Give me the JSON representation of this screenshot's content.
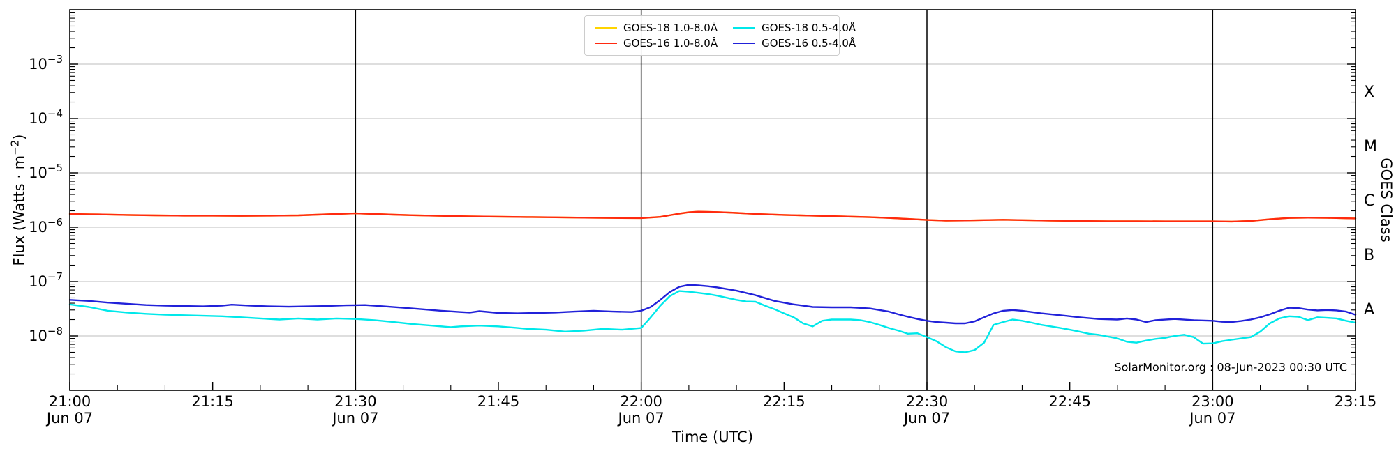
{
  "figure": {
    "watermark": "SolarMonitor.org : 08-Jun-2023 00:30 UTC"
  },
  "chart_data": {
    "type": "line",
    "title": "",
    "xlabel": "Time (UTC)",
    "ylabel_parts": {
      "pre": "Flux (Watts · m",
      "sup": "−2",
      "post": ")"
    },
    "ylabel_right": "GOES Class",
    "grid": true,
    "grid_color": "#c9c9c9",
    "axis_color": "#000000",
    "x_domain_minutes": [
      0,
      135
    ],
    "x_minor_step_minutes": 5,
    "x_ticks": [
      {
        "minutes": 0,
        "time": "21:00",
        "date": "Jun 07"
      },
      {
        "minutes": 15,
        "time": "21:15",
        "date": ""
      },
      {
        "minutes": 30,
        "time": "21:30",
        "date": "Jun 07"
      },
      {
        "minutes": 45,
        "time": "21:45",
        "date": ""
      },
      {
        "minutes": 60,
        "time": "22:00",
        "date": "Jun 07"
      },
      {
        "minutes": 75,
        "time": "22:15",
        "date": ""
      },
      {
        "minutes": 90,
        "time": "22:30",
        "date": "Jun 07"
      },
      {
        "minutes": 105,
        "time": "22:45",
        "date": ""
      },
      {
        "minutes": 120,
        "time": "23:00",
        "date": "Jun 07"
      },
      {
        "minutes": 135,
        "time": "23:15",
        "date": ""
      }
    ],
    "event_lines_minutes": [
      30,
      60,
      90,
      120
    ],
    "y_log_domain": [
      -9,
      -2
    ],
    "y_major_exponents": [
      -3,
      -4,
      -5,
      -6,
      -7,
      -8
    ],
    "y_tick_base": "10",
    "goes_classes": [
      {
        "label": "X",
        "log_center": -3.5
      },
      {
        "label": "M",
        "log_center": -4.5
      },
      {
        "label": "C",
        "log_center": -5.5
      },
      {
        "label": "B",
        "log_center": -6.5
      },
      {
        "label": "A",
        "log_center": -7.5
      }
    ],
    "legend": {
      "position": "top-center",
      "columns": 2
    },
    "series": [
      {
        "id": "goes18-long",
        "name": "GOES-18 1.0-8.0Å",
        "color": "#ffd400",
        "scale": 1e-06,
        "t": [
          0,
          3,
          6,
          9,
          12,
          15,
          18,
          21,
          24,
          26,
          28,
          30,
          32,
          34,
          36,
          39,
          42,
          45,
          48,
          51,
          54,
          57,
          60,
          62,
          64,
          65,
          66,
          68,
          70,
          72,
          75,
          78,
          81,
          84,
          86,
          88,
          90,
          92,
          94,
          96,
          98,
          100,
          103,
          106,
          109,
          112,
          115,
          118,
          120,
          122,
          124,
          126,
          128,
          130,
          132,
          134,
          135
        ],
        "values": [
          1.75,
          1.72,
          1.68,
          1.65,
          1.63,
          1.63,
          1.62,
          1.63,
          1.65,
          1.7,
          1.75,
          1.8,
          1.75,
          1.7,
          1.66,
          1.62,
          1.58,
          1.56,
          1.54,
          1.52,
          1.5,
          1.48,
          1.47,
          1.55,
          1.78,
          1.88,
          1.93,
          1.9,
          1.83,
          1.76,
          1.68,
          1.63,
          1.58,
          1.53,
          1.48,
          1.42,
          1.36,
          1.32,
          1.33,
          1.35,
          1.37,
          1.35,
          1.32,
          1.3,
          1.29,
          1.29,
          1.28,
          1.28,
          1.28,
          1.27,
          1.3,
          1.4,
          1.48,
          1.5,
          1.49,
          1.46,
          1.45
        ]
      },
      {
        "id": "goes16-long",
        "name": "GOES-16 1.0-8.0Å",
        "color": "#ff2a10",
        "scale": 1e-06,
        "t": [
          0,
          3,
          6,
          9,
          12,
          15,
          18,
          21,
          24,
          26,
          28,
          30,
          32,
          34,
          36,
          39,
          42,
          45,
          48,
          51,
          54,
          57,
          60,
          62,
          64,
          65,
          66,
          68,
          70,
          72,
          75,
          78,
          81,
          84,
          86,
          88,
          90,
          92,
          94,
          96,
          98,
          100,
          103,
          106,
          109,
          112,
          115,
          118,
          120,
          122,
          124,
          126,
          128,
          130,
          132,
          134,
          135
        ],
        "values": [
          1.75,
          1.72,
          1.68,
          1.65,
          1.63,
          1.63,
          1.62,
          1.63,
          1.65,
          1.7,
          1.75,
          1.8,
          1.75,
          1.7,
          1.66,
          1.62,
          1.58,
          1.56,
          1.54,
          1.52,
          1.5,
          1.48,
          1.47,
          1.55,
          1.78,
          1.88,
          1.93,
          1.9,
          1.83,
          1.76,
          1.68,
          1.63,
          1.58,
          1.53,
          1.48,
          1.42,
          1.36,
          1.32,
          1.33,
          1.35,
          1.37,
          1.35,
          1.32,
          1.3,
          1.29,
          1.29,
          1.28,
          1.28,
          1.28,
          1.27,
          1.3,
          1.4,
          1.48,
          1.5,
          1.49,
          1.46,
          1.45
        ]
      },
      {
        "id": "goes18-short",
        "name": "GOES-18 0.5-4.0Å",
        "color": "#00e8ea",
        "scale": 1e-08,
        "t": [
          0,
          2,
          4,
          6,
          8,
          10,
          12,
          14,
          16,
          18,
          20,
          22,
          24,
          26,
          28,
          30,
          32,
          34,
          36,
          38,
          40,
          41,
          43,
          45,
          47,
          48,
          50,
          52,
          54,
          56,
          58,
          60,
          61,
          62,
          63,
          64,
          65,
          66,
          67,
          68,
          70,
          71,
          72,
          73,
          74,
          75,
          76,
          77,
          78,
          79,
          80,
          82,
          83,
          84,
          85,
          86,
          87,
          88,
          89,
          90,
          91,
          92,
          93,
          94,
          95,
          96,
          97,
          98,
          99,
          100,
          101,
          102,
          103,
          104,
          105,
          106,
          107,
          108,
          110,
          111,
          112,
          113,
          114,
          115,
          116,
          117,
          118,
          119,
          120,
          121,
          122,
          123,
          124,
          125,
          126,
          127,
          128,
          129,
          130,
          131,
          132,
          133,
          134,
          135
        ],
        "values": [
          3.8,
          3.4,
          2.9,
          2.7,
          2.55,
          2.45,
          2.4,
          2.35,
          2.3,
          2.2,
          2.1,
          2.0,
          2.1,
          2.0,
          2.1,
          2.05,
          1.95,
          1.8,
          1.65,
          1.55,
          1.45,
          1.5,
          1.55,
          1.5,
          1.4,
          1.35,
          1.3,
          1.2,
          1.25,
          1.35,
          1.3,
          1.4,
          2.2,
          3.6,
          5.4,
          6.7,
          6.5,
          6.2,
          5.9,
          5.5,
          4.6,
          4.3,
          4.25,
          3.6,
          3.1,
          2.6,
          2.2,
          1.7,
          1.5,
          1.9,
          2.0,
          2.0,
          1.95,
          1.8,
          1.6,
          1.4,
          1.25,
          1.1,
          1.12,
          0.95,
          0.8,
          0.62,
          0.52,
          0.5,
          0.55,
          0.75,
          1.6,
          1.8,
          2.0,
          1.9,
          1.75,
          1.6,
          1.5,
          1.4,
          1.3,
          1.2,
          1.1,
          1.05,
          0.9,
          0.78,
          0.75,
          0.82,
          0.88,
          0.92,
          1.0,
          1.05,
          0.95,
          0.72,
          0.73,
          0.8,
          0.85,
          0.9,
          0.95,
          1.2,
          1.7,
          2.1,
          2.3,
          2.25,
          1.95,
          2.2,
          2.15,
          2.1,
          1.9,
          1.75
        ]
      },
      {
        "id": "goes16-short",
        "name": "GOES-16 0.5-4.0Å",
        "color": "#2121d9",
        "scale": 1e-08,
        "t": [
          0,
          2,
          4,
          6,
          8,
          10,
          12,
          14,
          16,
          17,
          19,
          21,
          23,
          25,
          27,
          29,
          31,
          33,
          35,
          37,
          39,
          41,
          42,
          43,
          45,
          47,
          49,
          51,
          53,
          55,
          57,
          59,
          60,
          61,
          62,
          63,
          64,
          65,
          66,
          67,
          68,
          70,
          72,
          74,
          76,
          77,
          78,
          80,
          82,
          84,
          85,
          86,
          87,
          88,
          89,
          90,
          91,
          92,
          93,
          94,
          95,
          96,
          97,
          98,
          99,
          100,
          102,
          104,
          106,
          108,
          110,
          111,
          112,
          113,
          114,
          116,
          118,
          120,
          121,
          122,
          123,
          124,
          125,
          126,
          127,
          128,
          129,
          130,
          131,
          132,
          133,
          134,
          135
        ],
        "values": [
          4.6,
          4.4,
          4.1,
          3.9,
          3.7,
          3.6,
          3.55,
          3.5,
          3.6,
          3.75,
          3.6,
          3.5,
          3.45,
          3.5,
          3.55,
          3.65,
          3.7,
          3.5,
          3.3,
          3.1,
          2.9,
          2.75,
          2.7,
          2.85,
          2.65,
          2.6,
          2.65,
          2.7,
          2.8,
          2.9,
          2.8,
          2.75,
          2.9,
          3.4,
          4.6,
          6.4,
          8.0,
          8.7,
          8.5,
          8.2,
          7.8,
          6.8,
          5.6,
          4.4,
          3.8,
          3.6,
          3.4,
          3.35,
          3.35,
          3.2,
          3.0,
          2.8,
          2.5,
          2.25,
          2.05,
          1.9,
          1.8,
          1.75,
          1.7,
          1.7,
          1.85,
          2.2,
          2.6,
          2.9,
          3.0,
          2.9,
          2.6,
          2.4,
          2.2,
          2.05,
          2.0,
          2.1,
          2.0,
          1.8,
          1.95,
          2.05,
          1.95,
          1.9,
          1.82,
          1.8,
          1.88,
          2.0,
          2.2,
          2.5,
          2.9,
          3.3,
          3.25,
          3.05,
          2.95,
          3.0,
          2.95,
          2.8,
          2.45
        ]
      }
    ]
  }
}
